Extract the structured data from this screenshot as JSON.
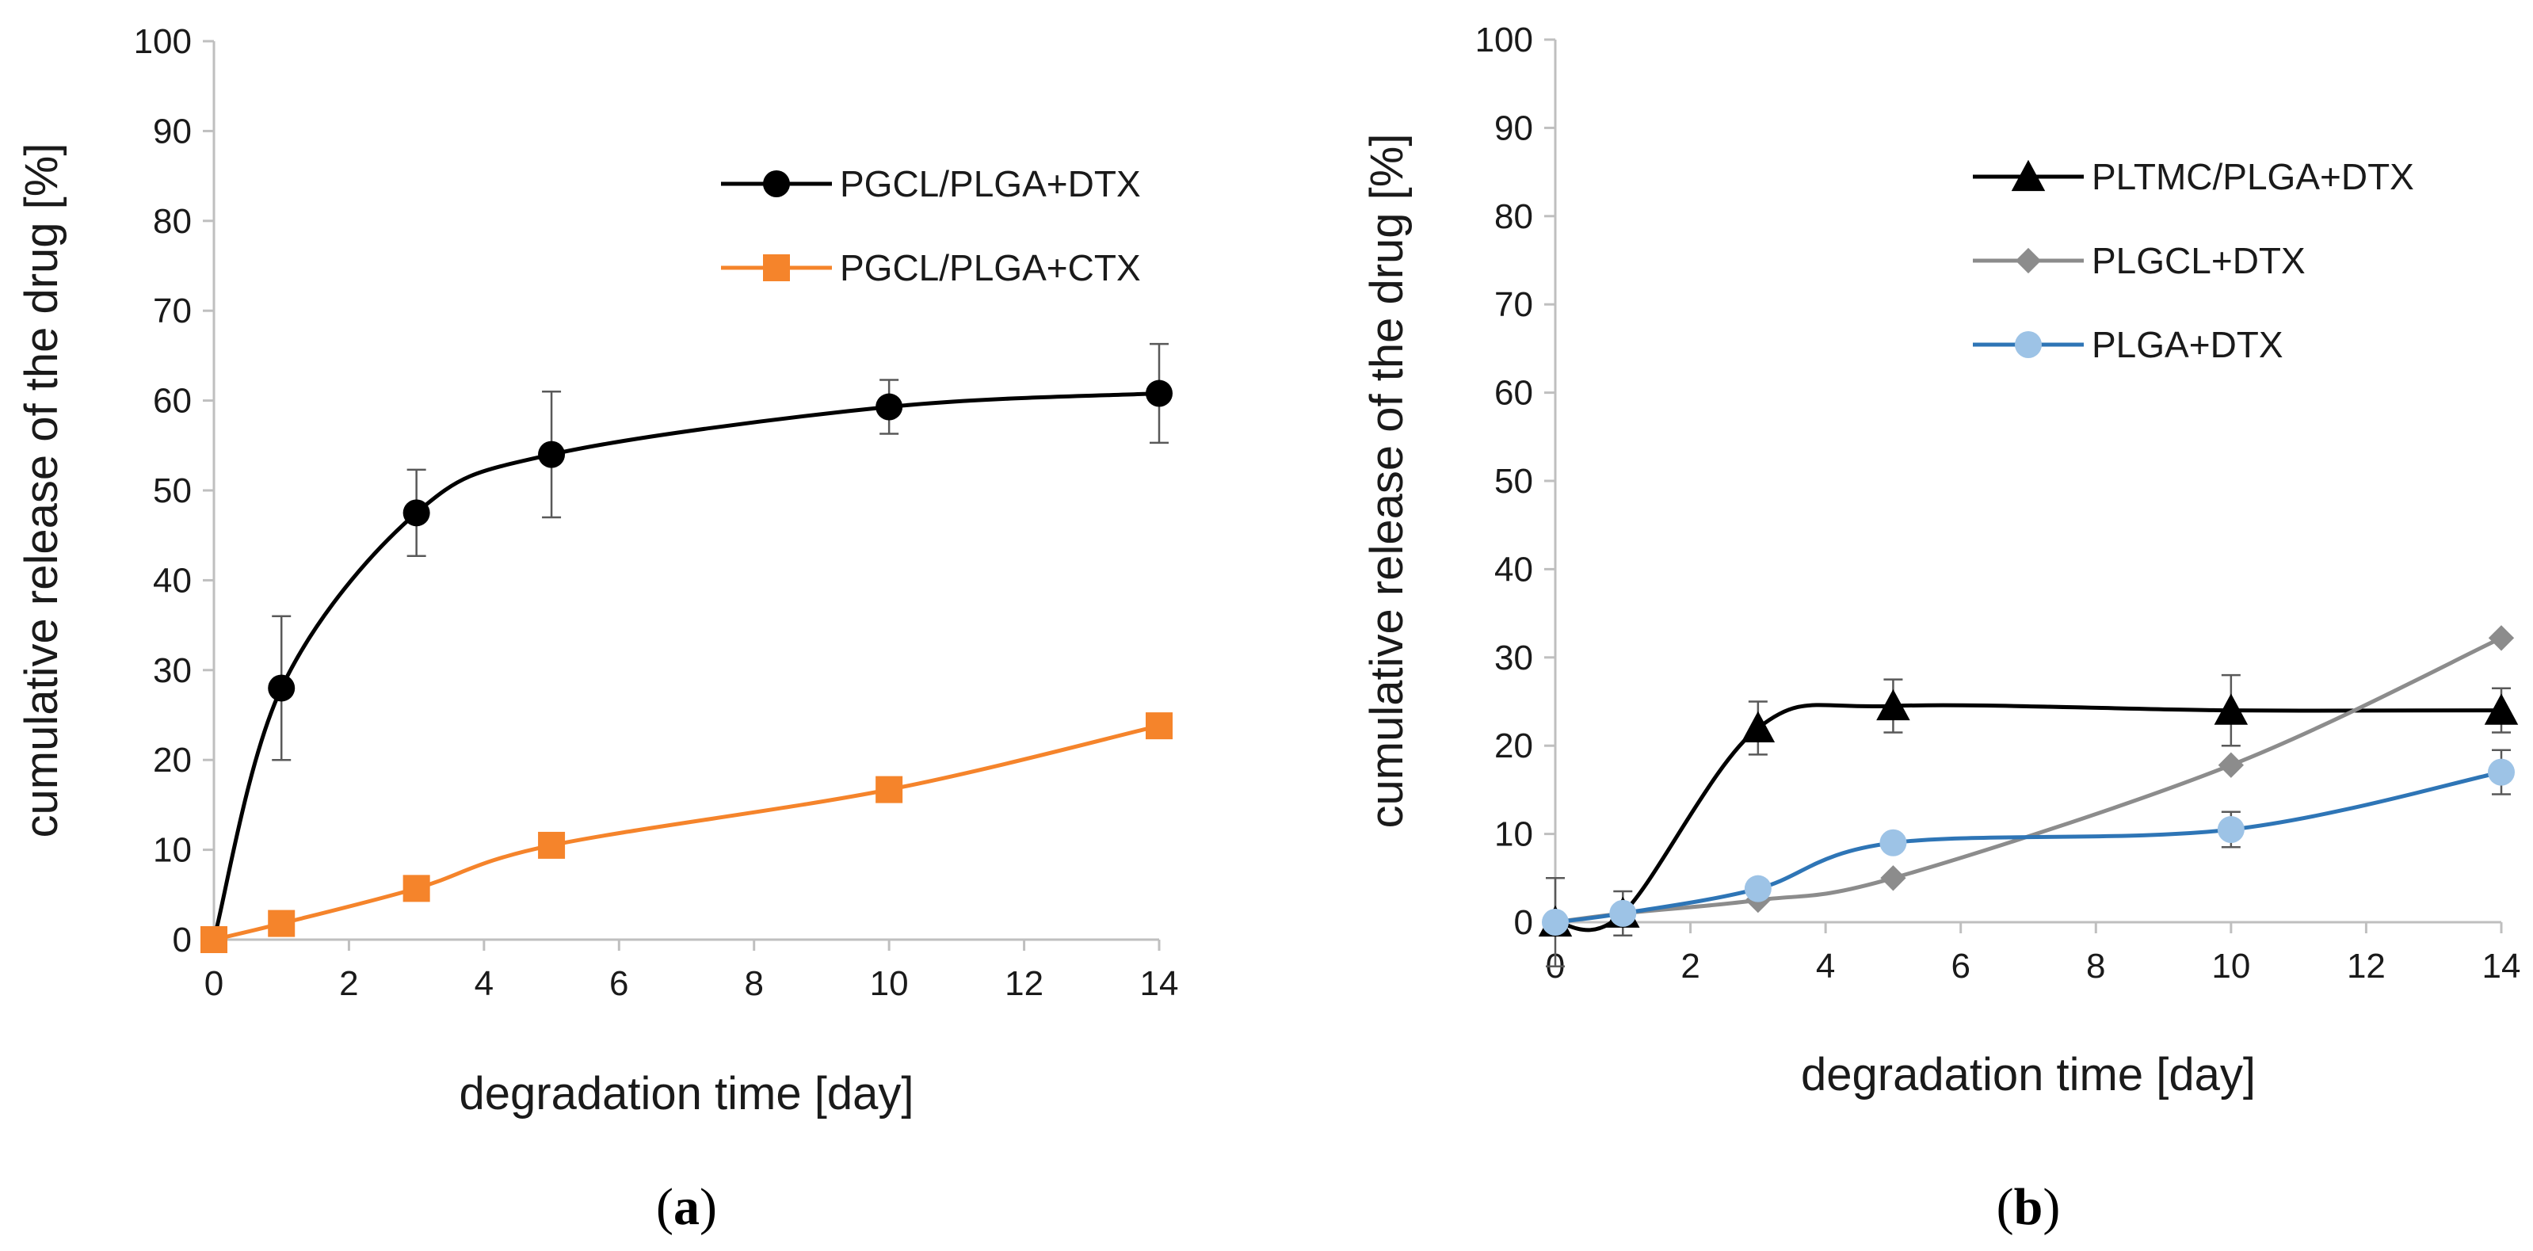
{
  "chart_data": [
    {
      "type": "line",
      "panel_label": "a",
      "title": "",
      "xlabel": "degradation time  [day]",
      "ylabel": "cumulative release of the drug [%]",
      "xlim": [
        0,
        14
      ],
      "ylim": [
        0,
        100
      ],
      "xticks": [
        0,
        2,
        4,
        6,
        8,
        10,
        12,
        14
      ],
      "yticks": [
        0,
        10,
        20,
        30,
        40,
        50,
        60,
        70,
        80,
        90,
        100
      ],
      "grid": false,
      "legend_position": "top-right",
      "series": [
        {
          "name": "PGCL/PLGA+DTX",
          "color": "#000000",
          "marker": "circle",
          "x": [
            0,
            1,
            3,
            5,
            10,
            14
          ],
          "values": [
            0,
            28,
            47.5,
            54,
            59.3,
            60.8
          ],
          "errors": [
            0,
            8,
            4.8,
            7,
            3,
            5.5
          ]
        },
        {
          "name": "PGCL/PLGA+CTX",
          "color": "#f5842b",
          "marker": "square",
          "x": [
            0,
            1,
            3,
            5,
            10,
            14
          ],
          "values": [
            0,
            1.8,
            5.7,
            10.5,
            16.7,
            23.8
          ],
          "errors": [
            0,
            0,
            0,
            0,
            0,
            0
          ]
        }
      ]
    },
    {
      "type": "line",
      "panel_label": "b",
      "title": "",
      "xlabel": "degradation time  [day]",
      "ylabel": "cumulative release of the drug [%]",
      "xlim": [
        0,
        14
      ],
      "ylim": [
        0,
        100
      ],
      "xticks": [
        0,
        2,
        4,
        6,
        8,
        10,
        12,
        14
      ],
      "yticks": [
        0,
        10,
        20,
        30,
        40,
        50,
        60,
        70,
        80,
        90,
        100
      ],
      "grid": false,
      "legend_position": "top-right",
      "series": [
        {
          "name": "PLTMC/PLGA+DTX",
          "color": "#000000",
          "marker": "triangle",
          "x": [
            0,
            1,
            3,
            5,
            10,
            14
          ],
          "values": [
            0,
            1,
            22,
            24.5,
            24,
            24
          ],
          "errors": [
            5,
            2.5,
            3,
            3,
            4,
            2.5
          ]
        },
        {
          "name": "PLGCL+DTX",
          "color": "#8c8c8c",
          "marker": "diamond",
          "x": [
            0,
            1,
            3,
            5,
            10,
            14
          ],
          "values": [
            0,
            1,
            2.5,
            5,
            17.8,
            32.2
          ],
          "errors": [
            0,
            0,
            0,
            0,
            0,
            0
          ]
        },
        {
          "name": "PLGA+DTX",
          "color": "#2e75b6",
          "marker_color": "#9dc3e6",
          "marker": "circle",
          "x": [
            0,
            1,
            3,
            5,
            10,
            14
          ],
          "values": [
            0,
            1,
            3.8,
            9,
            10.5,
            17
          ],
          "errors": [
            0,
            0,
            0,
            0,
            2,
            2.5
          ]
        }
      ]
    }
  ]
}
